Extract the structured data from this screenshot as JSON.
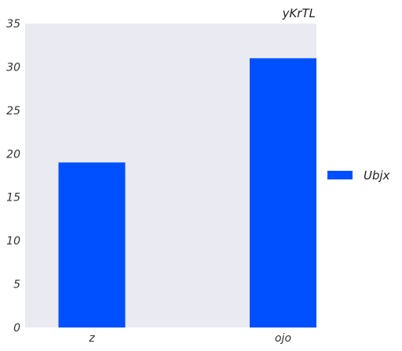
{
  "chart_data": {
    "type": "bar",
    "title": "yKrTL",
    "xlabel": "",
    "ylabel": "",
    "categories": [
      "z",
      "ojo"
    ],
    "series": [
      {
        "name": "Ubjx",
        "values": [
          19,
          31
        ],
        "color": "#0050ff"
      }
    ],
    "ylim": [
      0,
      35
    ],
    "yticks": [
      0,
      5,
      10,
      15,
      20,
      25,
      30,
      35
    ],
    "grid": false,
    "legend_position": "right",
    "plot_background": "#eaeaf2"
  }
}
